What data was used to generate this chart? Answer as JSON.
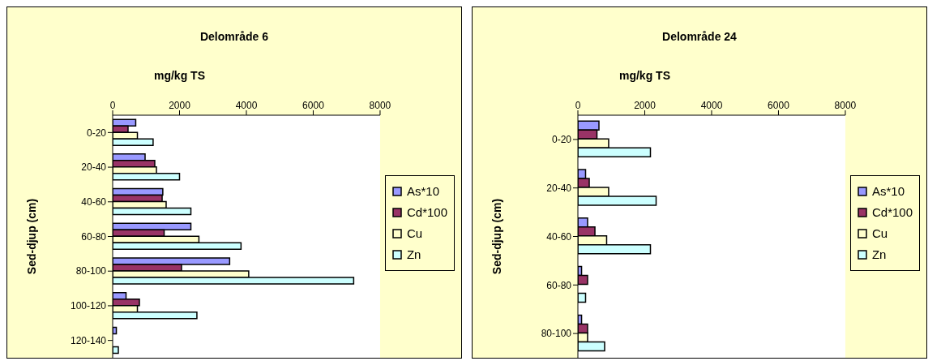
{
  "chart_data": [
    {
      "type": "bar",
      "orientation": "horizontal",
      "title": "Delområde 6",
      "xlabel": "mg/kg TS",
      "ylabel": "Sed-djup (cm)",
      "categories": [
        "0-20",
        "20-40",
        "40-60",
        "60-80",
        "80-100",
        "100-120",
        "120-140"
      ],
      "series": [
        {
          "name": "As*10",
          "color": "#9999ff",
          "values": [
            690,
            970,
            1500,
            2340,
            3500,
            400,
            110
          ]
        },
        {
          "name": "Cd*100",
          "color": "#993366",
          "values": [
            460,
            1260,
            1480,
            1540,
            2060,
            800,
            null
          ]
        },
        {
          "name": "Cu",
          "color": "#ffffcc",
          "values": [
            740,
            1310,
            1600,
            2580,
            4070,
            740,
            null
          ]
        },
        {
          "name": "Zn",
          "color": "#ccffff",
          "values": [
            1210,
            2000,
            2340,
            3840,
            7210,
            2520,
            170
          ]
        }
      ],
      "xlim": [
        0,
        8000
      ],
      "xticks": [
        0,
        2000,
        4000,
        6000,
        8000
      ],
      "grid": false,
      "legend": "right"
    },
    {
      "type": "bar",
      "orientation": "horizontal",
      "title": "Delområde 24",
      "xlabel": "mg/kg TS",
      "ylabel": "Sed-djup (cm)",
      "categories": [
        "0-20",
        "20-40",
        "40-60",
        "60-80",
        "80-100"
      ],
      "series": [
        {
          "name": "As*10",
          "color": "#9999ff",
          "values": [
            630,
            230,
            290,
            110,
            110
          ]
        },
        {
          "name": "Cd*100",
          "color": "#993366",
          "values": [
            570,
            340,
            510,
            290,
            290
          ]
        },
        {
          "name": "Cu",
          "color": "#ffffcc",
          "values": [
            920,
            920,
            860,
            null,
            290
          ]
        },
        {
          "name": "Zn",
          "color": "#ccffff",
          "values": [
            2170,
            2340,
            2170,
            230,
            800
          ]
        }
      ],
      "xlim": [
        0,
        8000
      ],
      "xticks": [
        0,
        2000,
        4000,
        6000,
        8000
      ],
      "grid": false,
      "legend": "right"
    }
  ]
}
